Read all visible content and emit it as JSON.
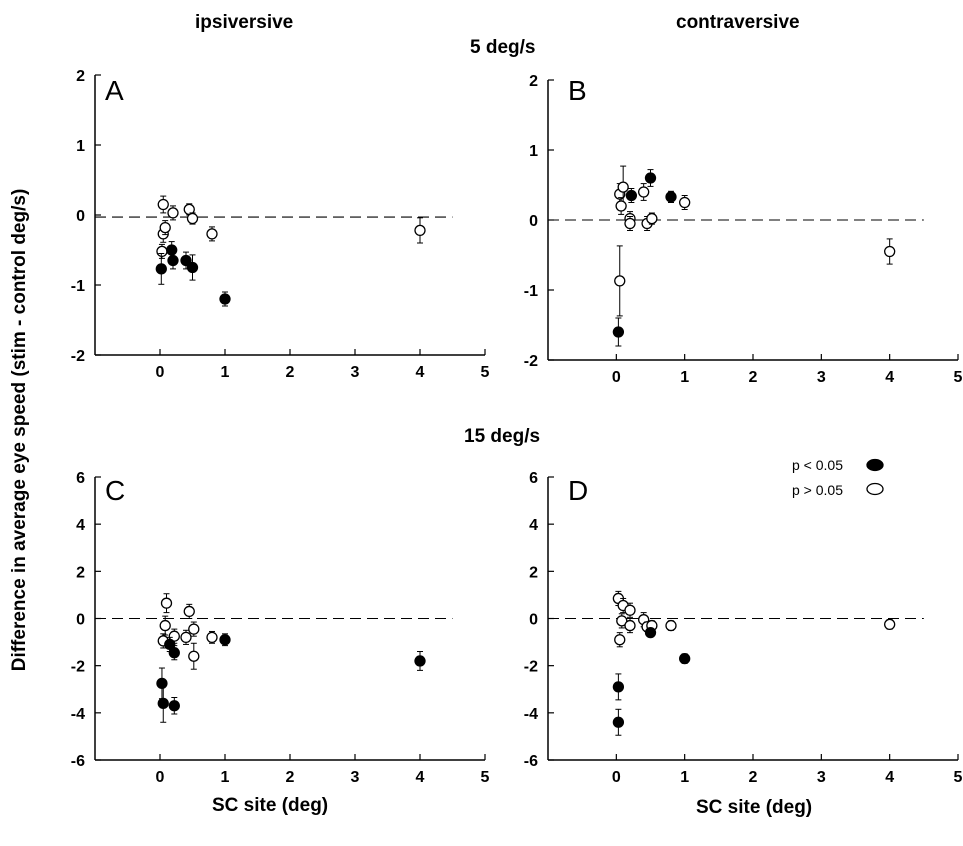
{
  "labels": {
    "col_left": "ipsiversive",
    "col_right": "contraversive",
    "row_top": "5 deg/s",
    "row_bottom": "15 deg/s",
    "ylabel": "Difference in average eye speed (stim - control deg/s)",
    "xlabel": "SC site (deg)"
  },
  "legend": {
    "sig": "p < 0.05",
    "nonsig": "p > 0.05"
  },
  "colors": {
    "filled": "#000000",
    "open": "#ffffff",
    "stroke": "#000000"
  },
  "chart_data": [
    {
      "panel": "A",
      "type": "scatter",
      "xlim": [
        -1,
        5
      ],
      "ylim": [
        -2,
        2
      ],
      "xticks": [
        0,
        1,
        2,
        3,
        4,
        5
      ],
      "yticks": [
        -2,
        -1,
        0,
        1,
        2
      ],
      "reference_line": -0.03,
      "points": [
        {
          "x": 0.05,
          "y": 0.15,
          "err": 0.12,
          "sig": false
        },
        {
          "x": 0.2,
          "y": 0.03,
          "err": 0.1,
          "sig": false
        },
        {
          "x": 0.05,
          "y": -0.27,
          "err": 0.12,
          "sig": false
        },
        {
          "x": 0.08,
          "y": -0.18,
          "err": 0.1,
          "sig": false
        },
        {
          "x": 0.03,
          "y": -0.52,
          "err": 0.1,
          "sig": false
        },
        {
          "x": 0.45,
          "y": 0.08,
          "err": 0.08,
          "sig": false
        },
        {
          "x": 0.5,
          "y": -0.05,
          "err": 0.08,
          "sig": false
        },
        {
          "x": 0.8,
          "y": -0.27,
          "err": 0.1,
          "sig": false
        },
        {
          "x": 4.0,
          "y": -0.22,
          "err": 0.18,
          "sig": false
        },
        {
          "x": 0.02,
          "y": -0.77,
          "err": 0.22,
          "sig": true
        },
        {
          "x": 0.18,
          "y": -0.5,
          "err": 0.12,
          "sig": true
        },
        {
          "x": 0.2,
          "y": -0.65,
          "err": 0.12,
          "sig": true
        },
        {
          "x": 0.4,
          "y": -0.65,
          "err": 0.12,
          "sig": true
        },
        {
          "x": 0.5,
          "y": -0.75,
          "err": 0.18,
          "sig": true
        },
        {
          "x": 1.0,
          "y": -1.2,
          "err": 0.1,
          "sig": true
        }
      ]
    },
    {
      "panel": "B",
      "type": "scatter",
      "xlim": [
        -1,
        5
      ],
      "ylim": [
        -2,
        2
      ],
      "xticks": [
        0,
        1,
        2,
        3,
        4,
        5
      ],
      "yticks": [
        -2,
        -1,
        0,
        1,
        2
      ],
      "reference_line": 0,
      "points": [
        {
          "x": 0.05,
          "y": 0.37,
          "err": 0.15,
          "sig": false
        },
        {
          "x": 0.1,
          "y": 0.47,
          "err": 0.3,
          "sig": false
        },
        {
          "x": 0.07,
          "y": 0.2,
          "err": 0.12,
          "sig": false
        },
        {
          "x": 0.2,
          "y": 0.02,
          "err": 0.1,
          "sig": false
        },
        {
          "x": 0.2,
          "y": -0.05,
          "err": 0.1,
          "sig": false
        },
        {
          "x": 0.4,
          "y": 0.4,
          "err": 0.12,
          "sig": false
        },
        {
          "x": 0.45,
          "y": -0.05,
          "err": 0.1,
          "sig": false
        },
        {
          "x": 0.52,
          "y": 0.02,
          "err": 0.08,
          "sig": false
        },
        {
          "x": 1.0,
          "y": 0.25,
          "err": 0.1,
          "sig": false
        },
        {
          "x": 0.05,
          "y": -0.87,
          "err": 0.5,
          "sig": false
        },
        {
          "x": 4.0,
          "y": -0.45,
          "err": 0.18,
          "sig": false
        },
        {
          "x": 0.22,
          "y": 0.35,
          "err": 0.1,
          "sig": true
        },
        {
          "x": 0.5,
          "y": 0.6,
          "err": 0.12,
          "sig": true
        },
        {
          "x": 0.8,
          "y": 0.33,
          "err": 0.08,
          "sig": true
        },
        {
          "x": 0.03,
          "y": -1.6,
          "err": 0.2,
          "sig": true
        }
      ]
    },
    {
      "panel": "C",
      "type": "scatter",
      "xlim": [
        -1,
        5
      ],
      "ylim": [
        -6,
        6
      ],
      "xticks": [
        0,
        1,
        2,
        3,
        4,
        5
      ],
      "yticks": [
        -6,
        -4,
        -2,
        0,
        2,
        4,
        6
      ],
      "reference_line": 0,
      "points": [
        {
          "x": 0.1,
          "y": 0.65,
          "err": 0.4,
          "sig": false
        },
        {
          "x": 0.08,
          "y": -0.3,
          "err": 0.4,
          "sig": false
        },
        {
          "x": 0.05,
          "y": -0.95,
          "err": 0.3,
          "sig": false
        },
        {
          "x": 0.22,
          "y": -0.75,
          "err": 0.3,
          "sig": false
        },
        {
          "x": 0.45,
          "y": 0.3,
          "err": 0.3,
          "sig": false
        },
        {
          "x": 0.4,
          "y": -0.8,
          "err": 0.3,
          "sig": false
        },
        {
          "x": 0.52,
          "y": -0.45,
          "err": 0.3,
          "sig": false
        },
        {
          "x": 0.52,
          "y": -1.6,
          "err": 0.55,
          "sig": false
        },
        {
          "x": 0.8,
          "y": -0.8,
          "err": 0.25,
          "sig": false
        },
        {
          "x": 0.15,
          "y": -1.1,
          "err": 0.3,
          "sig": true
        },
        {
          "x": 0.22,
          "y": -1.45,
          "err": 0.3,
          "sig": true
        },
        {
          "x": 0.03,
          "y": -2.75,
          "err": 0.65,
          "sig": true
        },
        {
          "x": 0.05,
          "y": -3.6,
          "err": 0.8,
          "sig": true
        },
        {
          "x": 0.22,
          "y": -3.7,
          "err": 0.35,
          "sig": true
        },
        {
          "x": 1.0,
          "y": -0.9,
          "err": 0.25,
          "sig": true
        },
        {
          "x": 4.0,
          "y": -1.8,
          "err": 0.4,
          "sig": true
        }
      ]
    },
    {
      "panel": "D",
      "type": "scatter",
      "xlim": [
        -1,
        5
      ],
      "ylim": [
        -6,
        6
      ],
      "xticks": [
        0,
        1,
        2,
        3,
        4,
        5
      ],
      "yticks": [
        -6,
        -4,
        -2,
        0,
        2,
        4,
        6
      ],
      "reference_line": 0,
      "points": [
        {
          "x": 0.03,
          "y": 0.85,
          "err": 0.3,
          "sig": false
        },
        {
          "x": 0.1,
          "y": 0.55,
          "err": 0.3,
          "sig": false
        },
        {
          "x": 0.2,
          "y": 0.35,
          "err": 0.3,
          "sig": false
        },
        {
          "x": 0.08,
          "y": -0.1,
          "err": 0.3,
          "sig": false
        },
        {
          "x": 0.2,
          "y": -0.3,
          "err": 0.3,
          "sig": false
        },
        {
          "x": 0.05,
          "y": -0.9,
          "err": 0.3,
          "sig": false
        },
        {
          "x": 0.4,
          "y": -0.05,
          "err": 0.3,
          "sig": false
        },
        {
          "x": 0.45,
          "y": -0.35,
          "err": 0.2,
          "sig": false
        },
        {
          "x": 0.52,
          "y": -0.3,
          "err": 0.2,
          "sig": false
        },
        {
          "x": 0.8,
          "y": -0.3,
          "err": 0.2,
          "sig": false
        },
        {
          "x": 4.0,
          "y": -0.25,
          "err": 0.2,
          "sig": false
        },
        {
          "x": 0.5,
          "y": -0.6,
          "err": 0.15,
          "sig": true
        },
        {
          "x": 1.0,
          "y": -1.7,
          "err": 0.2,
          "sig": true
        },
        {
          "x": 0.03,
          "y": -2.9,
          "err": 0.55,
          "sig": true
        },
        {
          "x": 0.03,
          "y": -4.4,
          "err": 0.55,
          "sig": true
        }
      ]
    }
  ]
}
